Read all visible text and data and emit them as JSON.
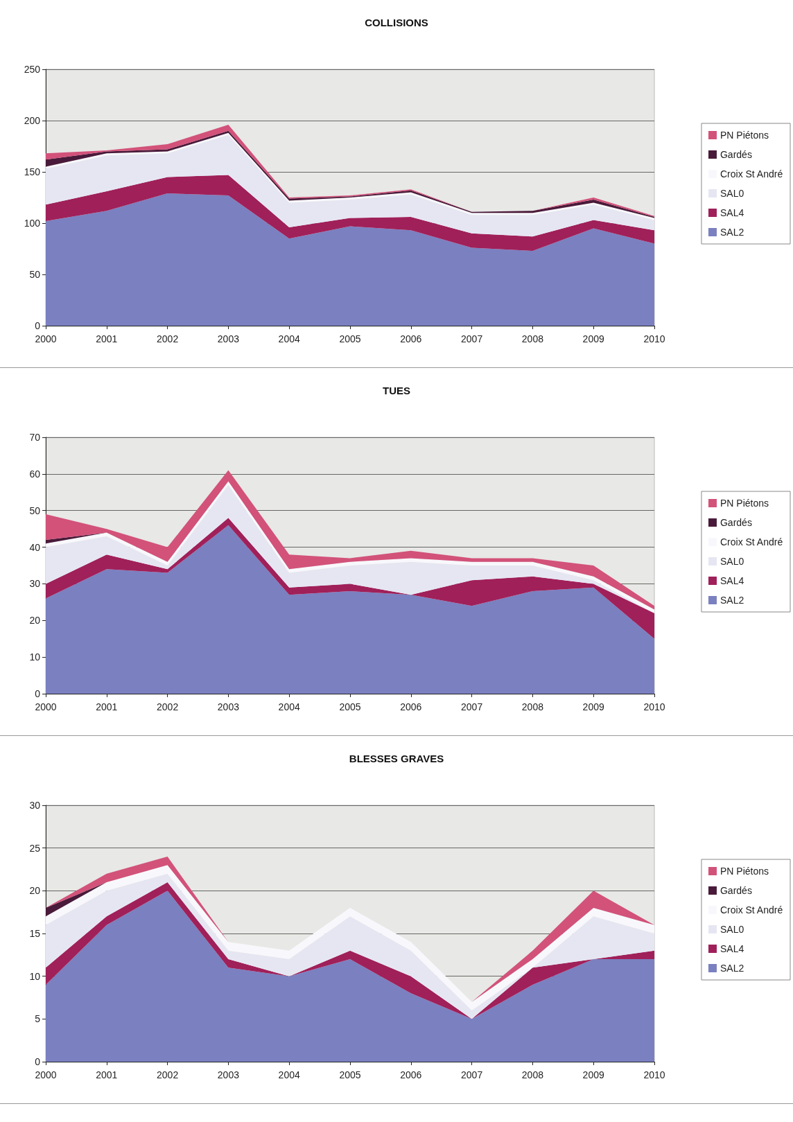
{
  "chart_data": [
    {
      "type": "area",
      "title": "COLLISIONS",
      "stacked": true,
      "legend": "right",
      "grid": "y",
      "categories": [
        "2000",
        "2001",
        "2002",
        "2003",
        "2004",
        "2005",
        "2006",
        "2007",
        "2008",
        "2009",
        "2010"
      ],
      "ylim": [
        0,
        250
      ],
      "yticks": [
        0,
        50,
        100,
        150,
        200,
        250
      ],
      "series": [
        {
          "name": "SAL2",
          "color": "#7b80c0",
          "values": [
            102,
            112,
            129,
            127,
            85,
            97,
            93,
            76,
            73,
            95,
            80
          ]
        },
        {
          "name": "SAL4",
          "color": "#a0205a",
          "values": [
            16,
            19,
            16,
            20,
            11,
            8,
            13,
            14,
            14,
            8,
            13
          ]
        },
        {
          "name": "SAL0",
          "color": "#e6e6f2",
          "values": [
            35,
            35,
            23,
            39,
            24,
            18,
            22,
            18,
            21,
            15,
            10
          ]
        },
        {
          "name": "Croix St André",
          "color": "#f8f8fc",
          "values": [
            2,
            2,
            2,
            2,
            2,
            2,
            2,
            2,
            2,
            2,
            2
          ]
        },
        {
          "name": "Gardés",
          "color": "#4a1a3a",
          "values": [
            7,
            2,
            2,
            2,
            2,
            1,
            2,
            1,
            2,
            3,
            1
          ]
        },
        {
          "name": "PN Piétons",
          "color": "#d2527a",
          "values": [
            6,
            1,
            5,
            6,
            1,
            1,
            1,
            0,
            0,
            2,
            1
          ]
        }
      ]
    },
    {
      "type": "area",
      "title": "TUES",
      "stacked": true,
      "legend": "right",
      "grid": "y",
      "categories": [
        "2000",
        "2001",
        "2002",
        "2003",
        "2004",
        "2005",
        "2006",
        "2007",
        "2008",
        "2009",
        "2010"
      ],
      "ylim": [
        0,
        70
      ],
      "yticks": [
        0,
        10,
        20,
        30,
        40,
        50,
        60,
        70
      ],
      "series": [
        {
          "name": "SAL2",
          "color": "#7b80c0",
          "values": [
            26,
            34,
            33,
            46,
            27,
            28,
            27,
            24,
            28,
            29,
            15
          ]
        },
        {
          "name": "SAL4",
          "color": "#a0205a",
          "values": [
            4,
            4,
            1,
            2,
            2,
            2,
            0,
            7,
            4,
            1,
            7
          ]
        },
        {
          "name": "SAL0",
          "color": "#e6e6f2",
          "values": [
            10,
            5,
            1,
            9,
            4,
            5,
            9,
            4,
            3,
            1,
            0
          ]
        },
        {
          "name": "Croix St André",
          "color": "#f8f8fc",
          "values": [
            1,
            1,
            1,
            1,
            1,
            1,
            1,
            1,
            1,
            1,
            1
          ]
        },
        {
          "name": "Gardés",
          "color": "#4a1a3a",
          "values": [
            1,
            0,
            0,
            0,
            0,
            0,
            0,
            0,
            0,
            0,
            0
          ]
        },
        {
          "name": "PN Piétons",
          "color": "#d2527a",
          "values": [
            7,
            1,
            4,
            3,
            4,
            1,
            2,
            1,
            1,
            3,
            1
          ]
        }
      ]
    },
    {
      "type": "area",
      "title": "BLESSES GRAVES",
      "stacked": true,
      "legend": "right",
      "grid": "y",
      "categories": [
        "2000",
        "2001",
        "2002",
        "2003",
        "2004",
        "2005",
        "2006",
        "2007",
        "2008",
        "2009",
        "2010"
      ],
      "ylim": [
        0,
        30
      ],
      "yticks": [
        0,
        5,
        10,
        15,
        20,
        25,
        30
      ],
      "series": [
        {
          "name": "SAL2",
          "color": "#7b80c0",
          "values": [
            9,
            16,
            20,
            11,
            10,
            12,
            8,
            5,
            9,
            12,
            12
          ]
        },
        {
          "name": "SAL4",
          "color": "#a0205a",
          "values": [
            2,
            1,
            1,
            1,
            0,
            1,
            2,
            0,
            2,
            0,
            1
          ]
        },
        {
          "name": "SAL0",
          "color": "#e6e6f2",
          "values": [
            5,
            3,
            1,
            1,
            2,
            4,
            3,
            1,
            0,
            5,
            2
          ]
        },
        {
          "name": "Croix St André",
          "color": "#f8f8fc",
          "values": [
            1,
            1,
            1,
            1,
            1,
            1,
            1,
            1,
            1,
            1,
            1
          ]
        },
        {
          "name": "Gardés",
          "color": "#4a1a3a",
          "values": [
            1,
            0,
            0,
            0,
            0,
            0,
            0,
            0,
            0,
            0,
            0
          ]
        },
        {
          "name": "PN Piétons",
          "color": "#d2527a",
          "values": [
            0,
            1,
            1,
            0,
            0,
            0,
            0,
            0,
            1,
            2,
            0
          ]
        }
      ]
    }
  ]
}
